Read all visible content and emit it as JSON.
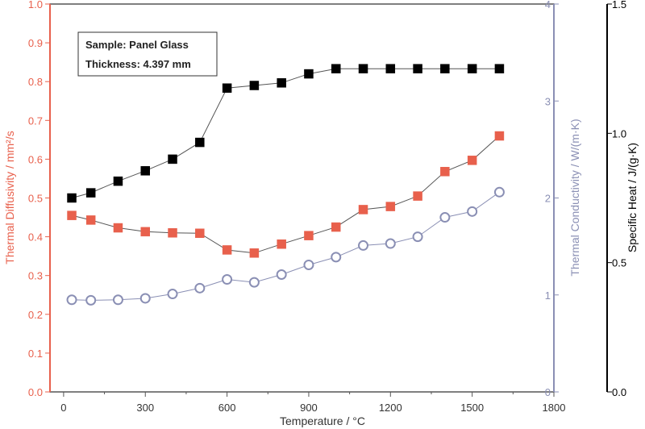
{
  "chart_data": {
    "type": "line",
    "annotation": {
      "line1": "Sample: Panel Glass",
      "line2": "Thickness: 4.397 mm"
    },
    "colors": {
      "diffusivity": "#e8604c",
      "conductivity": "#8a8fb4",
      "specific_heat": "#000000",
      "plot_border": "#555555"
    },
    "x_axis": {
      "label": "Temperature / °C",
      "range": [
        -50,
        1800
      ],
      "ticks": [
        "0",
        "300",
        "600",
        "900",
        "1200",
        "1500",
        "1800"
      ],
      "tick_values": [
        0,
        300,
        600,
        900,
        1200,
        1500,
        1800
      ]
    },
    "y_left": {
      "label": "Thermal Diffusivity / mm²/s",
      "range": [
        0,
        1.0
      ],
      "ticks": [
        "0.0",
        "0.1",
        "0.2",
        "0.3",
        "0.4",
        "0.5",
        "0.6",
        "0.7",
        "0.8",
        "0.9",
        "1.0"
      ],
      "tick_values": [
        0,
        0.1,
        0.2,
        0.3,
        0.4,
        0.5,
        0.6,
        0.7,
        0.8,
        0.9,
        1.0
      ]
    },
    "y_mid": {
      "label": "Thermal Conductivity / W/(m·K)",
      "range": [
        0,
        4
      ],
      "ticks": [
        "0",
        "1",
        "2",
        "3",
        "4"
      ],
      "tick_values": [
        0,
        1,
        2,
        3,
        4
      ]
    },
    "y_right": {
      "label": "Specific Heat / J/(g·K)",
      "range": [
        0,
        1.5
      ],
      "ticks": [
        "0.0",
        "0.5",
        "1.0",
        "1.5"
      ],
      "tick_values": [
        0,
        0.5,
        1.0,
        1.5
      ]
    },
    "series": [
      {
        "axis": "right",
        "marker": "filled-square",
        "color": "#000000",
        "x": [
          30,
          100,
          200,
          300,
          400,
          500,
          600,
          700,
          800,
          900,
          1000,
          1100,
          1200,
          1300,
          1400,
          1500,
          1600
        ],
        "y": [
          0.75,
          0.77,
          0.815,
          0.855,
          0.9,
          0.965,
          1.175,
          1.185,
          1.195,
          1.23,
          1.25,
          1.25,
          1.25,
          1.25,
          1.25,
          1.25,
          1.25
        ]
      },
      {
        "axis": "left",
        "marker": "filled-square",
        "color": "#e8604c",
        "x": [
          30,
          100,
          200,
          300,
          400,
          500,
          600,
          700,
          800,
          900,
          1000,
          1100,
          1200,
          1300,
          1400,
          1500,
          1600
        ],
        "y": [
          0.455,
          0.443,
          0.423,
          0.413,
          0.41,
          0.409,
          0.366,
          0.358,
          0.381,
          0.403,
          0.425,
          0.47,
          0.478,
          0.505,
          0.568,
          0.597,
          0.66
        ]
      },
      {
        "axis": "mid",
        "marker": "open-circle",
        "color": "#8a8fb4",
        "x": [
          30,
          100,
          200,
          300,
          400,
          500,
          600,
          700,
          800,
          900,
          1000,
          1100,
          1200,
          1300,
          1400,
          1500,
          1600
        ],
        "y": [
          0.95,
          0.945,
          0.95,
          0.965,
          1.01,
          1.07,
          1.16,
          1.13,
          1.21,
          1.31,
          1.39,
          1.51,
          1.53,
          1.6,
          1.8,
          1.86,
          2.06
        ]
      }
    ]
  }
}
